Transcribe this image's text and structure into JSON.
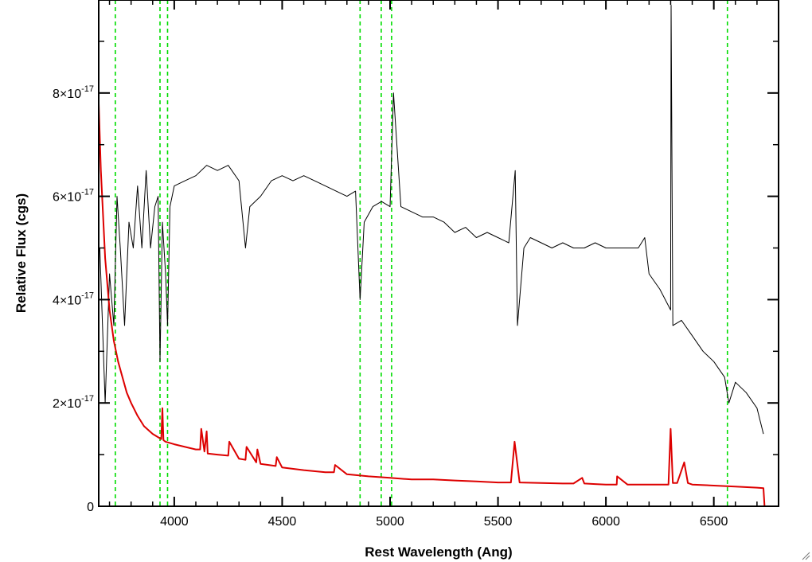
{
  "chart_data": {
    "type": "line",
    "title": "",
    "xlabel": "Rest Wavelength (Ang)",
    "ylabel": "Relative Flux (cgs)",
    "xlim": [
      3650,
      6800
    ],
    "ylim": [
      0,
      9.8e-17
    ],
    "x_ticks": [
      4000,
      4500,
      5000,
      5500,
      6000,
      6500
    ],
    "x_tick_labels": [
      "4000",
      "4500",
      "5000",
      "5500",
      "6000",
      "6500"
    ],
    "y_ticks": [
      0,
      2e-17,
      4e-17,
      6e-17,
      8e-17
    ],
    "y_tick_labels": [
      {
        "mantissa": "0",
        "exponent": ""
      },
      {
        "mantissa": "2×10",
        "exponent": "-17"
      },
      {
        "mantissa": "4×10",
        "exponent": "-17"
      },
      {
        "mantissa": "6×10",
        "exponent": "-17"
      },
      {
        "mantissa": "8×10",
        "exponent": "-17"
      }
    ],
    "grid": false,
    "vertical_markers": {
      "color": "#00dd00",
      "style": "dashed",
      "x": [
        3727,
        3934,
        3969,
        4861,
        4959,
        5007,
        6563
      ]
    },
    "series": [
      {
        "color": "#000000",
        "x": [
          3655,
          3680,
          3700,
          3720,
          3735,
          3750,
          3770,
          3790,
          3810,
          3830,
          3850,
          3870,
          3890,
          3910,
          3925,
          3934,
          3945,
          3960,
          3969,
          3980,
          4000,
          4050,
          4100,
          4150,
          4200,
          4250,
          4300,
          4330,
          4350,
          4400,
          4450,
          4500,
          4550,
          4600,
          4650,
          4700,
          4750,
          4800,
          4840,
          4861,
          4880,
          4920,
          4960,
          5000,
          5016,
          5050,
          5100,
          5150,
          5200,
          5250,
          5300,
          5350,
          5400,
          5450,
          5500,
          5550,
          5580,
          5590,
          5620,
          5650,
          5700,
          5750,
          5800,
          5850,
          5900,
          5950,
          6000,
          6050,
          6100,
          6150,
          6180,
          6200,
          6250,
          6300,
          6302,
          6310,
          6350,
          6400,
          6450,
          6500,
          6550,
          6570,
          6600,
          6650,
          6700,
          6730
        ],
        "y": [
          5e-17,
          2e-17,
          4.5e-17,
          3.5e-17,
          6e-17,
          5e-17,
          3.5e-17,
          5.5e-17,
          5e-17,
          6.2e-17,
          5e-17,
          6.5e-17,
          5e-17,
          5.8e-17,
          6e-17,
          2.8e-17,
          5.5e-17,
          4.5e-17,
          3.5e-17,
          5.8e-17,
          6.2e-17,
          6.3e-17,
          6.4e-17,
          6.6e-17,
          6.5e-17,
          6.6e-17,
          6.3e-17,
          5e-17,
          5.8e-17,
          6e-17,
          6.3e-17,
          6.4e-17,
          6.3e-17,
          6.4e-17,
          6.3e-17,
          6.2e-17,
          6.1e-17,
          6e-17,
          6.1e-17,
          4e-17,
          5.5e-17,
          5.8e-17,
          5.9e-17,
          5.8e-17,
          8e-17,
          5.8e-17,
          5.7e-17,
          5.6e-17,
          5.6e-17,
          5.5e-17,
          5.3e-17,
          5.4e-17,
          5.2e-17,
          5.3e-17,
          5.2e-17,
          5.1e-17,
          6.5e-17,
          3.5e-17,
          5e-17,
          5.2e-17,
          5.1e-17,
          5e-17,
          5.1e-17,
          5e-17,
          5e-17,
          5.1e-17,
          5e-17,
          5e-17,
          5e-17,
          5e-17,
          5.2e-17,
          4.5e-17,
          4.2e-17,
          3.8e-17,
          9.7e-17,
          3.5e-17,
          3.6e-17,
          3.3e-17,
          3e-17,
          2.8e-17,
          2.5e-17,
          2e-17,
          2.4e-17,
          2.2e-17,
          1.9e-17,
          1.4e-17
        ]
      },
      {
        "color": "#dd0000",
        "x": [
          3650,
          3660,
          3680,
          3700,
          3720,
          3740,
          3760,
          3780,
          3800,
          3830,
          3860,
          3900,
          3940,
          3945,
          3950,
          3960,
          4000,
          4050,
          4100,
          4120,
          4125,
          4140,
          4150,
          4155,
          4200,
          4250,
          4255,
          4300,
          4330,
          4335,
          4380,
          4385,
          4400,
          4470,
          4475,
          4500,
          4600,
          4700,
          4740,
          4745,
          4800,
          4900,
          5000,
          5100,
          5200,
          5300,
          5400,
          5500,
          5560,
          5577,
          5600,
          5700,
          5800,
          5850,
          5890,
          5900,
          5950,
          6000,
          6050,
          6052,
          6100,
          6200,
          6250,
          6290,
          6300,
          6310,
          6330,
          6363,
          6380,
          6400,
          6500,
          6600,
          6700,
          6730,
          6735,
          6800
        ],
        "y": [
          7.8e-17,
          6.5e-17,
          4.8e-17,
          3.8e-17,
          3.2e-17,
          2.8e-17,
          2.5e-17,
          2.2e-17,
          2e-17,
          1.75e-17,
          1.55e-17,
          1.4e-17,
          1.3e-17,
          1.9e-17,
          1.28e-17,
          1.25e-17,
          1.2e-17,
          1.15e-17,
          1.1e-17,
          1.1e-17,
          1.5e-17,
          1.06e-17,
          1.45e-17,
          1.02e-17,
          1e-17,
          9.8e-18,
          1.25e-17,
          9.2e-18,
          9e-18,
          1.15e-17,
          8.5e-18,
          1.1e-17,
          8.2e-18,
          7.8e-18,
          9.5e-18,
          7.5e-18,
          7e-18,
          6.6e-18,
          6.6e-18,
          8e-18,
          6.2e-18,
          5.8e-18,
          5.5e-18,
          5.2e-18,
          5.2e-18,
          5e-18,
          4.8e-18,
          4.6e-18,
          4.6e-18,
          1.25e-17,
          4.6e-18,
          4.5e-18,
          4.4e-18,
          4.4e-18,
          5.5e-18,
          4.4e-18,
          4.3e-18,
          4.2e-18,
          4.2e-18,
          5.8e-18,
          4.2e-18,
          4.2e-18,
          4.2e-18,
          4.2e-18,
          1.5e-17,
          4.5e-18,
          4.5e-18,
          8.5e-18,
          4.5e-18,
          4.2e-18,
          4e-18,
          3.8e-18,
          3.6e-18,
          3.5e-18,
          0.0,
          0.0
        ]
      }
    ]
  }
}
